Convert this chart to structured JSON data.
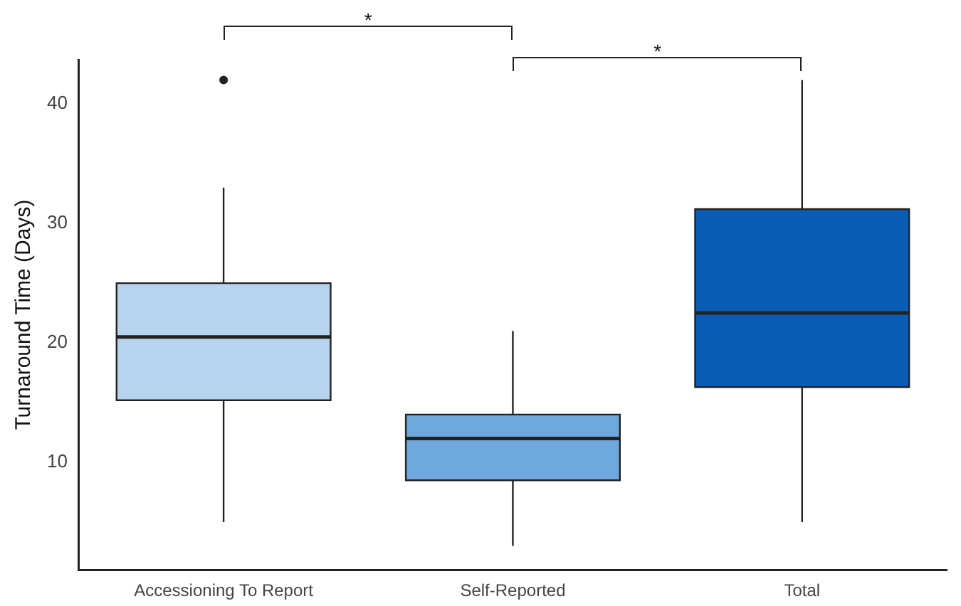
{
  "chart_data": {
    "type": "box",
    "ylabel": "Turnaround Time (Days)",
    "categories": [
      "Accessioning To Report",
      "Self-Reported",
      "Total"
    ],
    "colors": [
      "#b6d4ee",
      "#6fa8dc",
      "#0a5db6"
    ],
    "boxes": [
      {
        "low": 5,
        "q1": 15.2,
        "median": 20.5,
        "q3": 25,
        "high": 33,
        "outliers": [
          42
        ]
      },
      {
        "low": 3,
        "q1": 8.5,
        "median": 12,
        "q3": 14,
        "high": 21
      },
      {
        "low": 5,
        "q1": 16.3,
        "median": 22.5,
        "q3": 31.2,
        "high": 42
      }
    ],
    "ylim": [
      1,
      43.7
    ],
    "yticks": [
      10,
      20,
      30,
      40
    ],
    "grid": false,
    "legend": false,
    "annotations": [
      "*",
      "*"
    ]
  }
}
